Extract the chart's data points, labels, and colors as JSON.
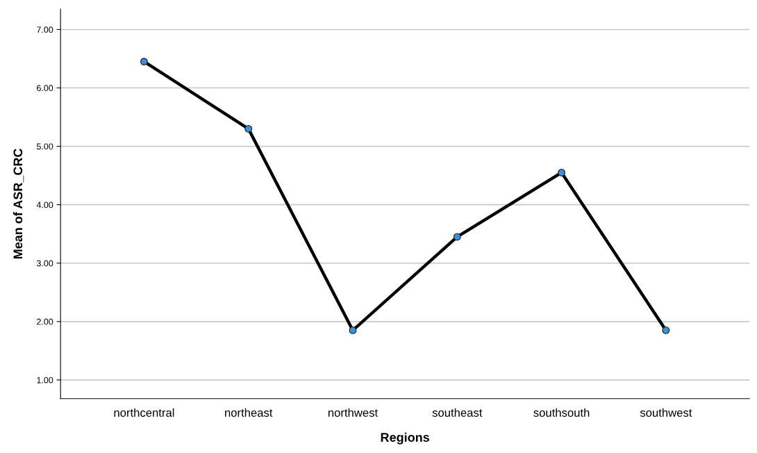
{
  "chart_data": {
    "type": "line",
    "xlabel": "Regions",
    "ylabel": "Mean of ASR_CRC",
    "categories": [
      "northcentral",
      "northeast",
      "northwest",
      "southeast",
      "southsouth",
      "southwest"
    ],
    "series": [
      {
        "color": "#000000",
        "values": [
          6.45,
          5.3,
          1.85,
          3.45,
          4.55,
          1.85
        ]
      }
    ],
    "marker": "circle",
    "line_style": "solid",
    "grid": "y",
    "legend": false,
    "ylim": [
      0.68,
      7.35
    ],
    "yticks": [
      {
        "value": 1,
        "label": "1.00"
      },
      {
        "value": 2,
        "label": "2.00"
      },
      {
        "value": 3,
        "label": "3.00"
      },
      {
        "value": 4,
        "label": "4.00"
      },
      {
        "value": 5,
        "label": "5.00"
      },
      {
        "value": 6,
        "label": "6.00"
      },
      {
        "value": 7,
        "label": "7.00"
      }
    ]
  }
}
